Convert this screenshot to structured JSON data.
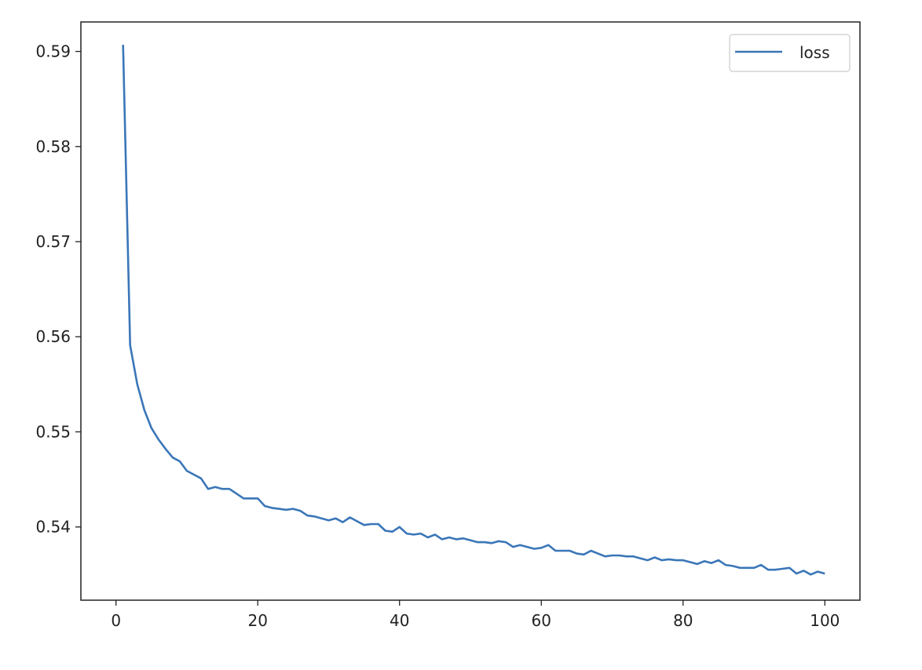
{
  "chart_data": {
    "type": "line",
    "title": "",
    "xlabel": "",
    "ylabel": "",
    "xlim": [
      -4.95,
      104.95
    ],
    "ylim": [
      0.5323,
      0.5931
    ],
    "xticks": [
      0,
      20,
      40,
      60,
      80,
      100
    ],
    "xtick_labels": [
      "0",
      "20",
      "40",
      "60",
      "80",
      "100"
    ],
    "yticks": [
      0.54,
      0.55,
      0.56,
      0.57,
      0.58,
      0.59
    ],
    "ytick_labels": [
      "0.54",
      "0.55",
      "0.56",
      "0.57",
      "0.58",
      "0.59"
    ],
    "grid": false,
    "legend": {
      "placement": "top-right",
      "entries": [
        "loss"
      ]
    },
    "series": [
      {
        "name": "loss",
        "color": "#3a76b8",
        "x": [
          1,
          2,
          3,
          4,
          5,
          6,
          7,
          8,
          9,
          10,
          11,
          12,
          13,
          14,
          15,
          16,
          17,
          18,
          19,
          20,
          21,
          22,
          23,
          24,
          25,
          26,
          27,
          28,
          29,
          30,
          31,
          32,
          33,
          34,
          35,
          36,
          37,
          38,
          39,
          40,
          41,
          42,
          43,
          44,
          45,
          46,
          47,
          48,
          49,
          50,
          51,
          52,
          53,
          54,
          55,
          56,
          57,
          58,
          59,
          60,
          61,
          62,
          63,
          64,
          65,
          66,
          67,
          68,
          69,
          70,
          71,
          72,
          73,
          74,
          75,
          76,
          77,
          78,
          79,
          80,
          81,
          82,
          83,
          84,
          85,
          86,
          87,
          88,
          89,
          90,
          91,
          92,
          93,
          94,
          95,
          96,
          97,
          98,
          99,
          100
        ],
        "values": [
          0.5907,
          0.5591,
          0.555,
          0.5523,
          0.5504,
          0.5492,
          0.5482,
          0.5473,
          0.5469,
          0.5459,
          0.5455,
          0.5451,
          0.544,
          0.5442,
          0.544,
          0.544,
          0.5435,
          0.543,
          0.543,
          0.543,
          0.5422,
          0.542,
          0.5419,
          0.5418,
          0.5419,
          0.5417,
          0.5412,
          0.5411,
          0.5409,
          0.5407,
          0.5409,
          0.5405,
          0.541,
          0.5406,
          0.5402,
          0.5403,
          0.5403,
          0.5396,
          0.5395,
          0.54,
          0.5393,
          0.5392,
          0.5393,
          0.5389,
          0.5392,
          0.5387,
          0.5389,
          0.5387,
          0.5388,
          0.5386,
          0.5384,
          0.5384,
          0.5383,
          0.5385,
          0.5384,
          0.5379,
          0.5381,
          0.5379,
          0.5377,
          0.5378,
          0.5381,
          0.5375,
          0.5375,
          0.5375,
          0.5372,
          0.5371,
          0.5375,
          0.5372,
          0.5369,
          0.537,
          0.537,
          0.5369,
          0.5369,
          0.5367,
          0.5365,
          0.5368,
          0.5365,
          0.5366,
          0.5365,
          0.5365,
          0.5363,
          0.5361,
          0.5364,
          0.5362,
          0.5365,
          0.536,
          0.5359,
          0.5357,
          0.5357,
          0.5357,
          0.536,
          0.5355,
          0.5355,
          0.5356,
          0.5357,
          0.5351,
          0.5354,
          0.535,
          0.5353,
          0.5351
        ]
      }
    ]
  }
}
